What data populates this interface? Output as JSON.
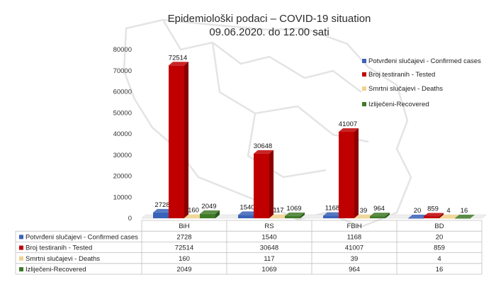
{
  "chart_data": {
    "type": "bar",
    "title": "Epidemiološki podaci – COVID-19 situation",
    "subtitle": "09.06.2020. do 12.00 sati",
    "categories": [
      "BiH",
      "RS",
      "FBiH",
      "BD"
    ],
    "ylim": [
      0,
      80000
    ],
    "yticks": [
      0,
      10000,
      20000,
      30000,
      40000,
      50000,
      60000,
      70000,
      80000
    ],
    "grid": false,
    "legend_position": "right",
    "series": [
      {
        "name": "Potvrđeni slučajevi - Confirmed cases",
        "color": "#3a62b8",
        "values": [
          2728,
          1540,
          1168,
          20
        ]
      },
      {
        "name": "Broj testiranih - Tested",
        "color": "#c00000",
        "values": [
          72514,
          30648,
          41007,
          859
        ]
      },
      {
        "name": "Smrtni slučajevi - Deaths",
        "color": "#f2d28c",
        "values": [
          160,
          117,
          39,
          4
        ]
      },
      {
        "name": "Izliječeni-Recovered",
        "color": "#3f7a28",
        "values": [
          2049,
          1069,
          964,
          16
        ]
      }
    ],
    "table": true
  }
}
